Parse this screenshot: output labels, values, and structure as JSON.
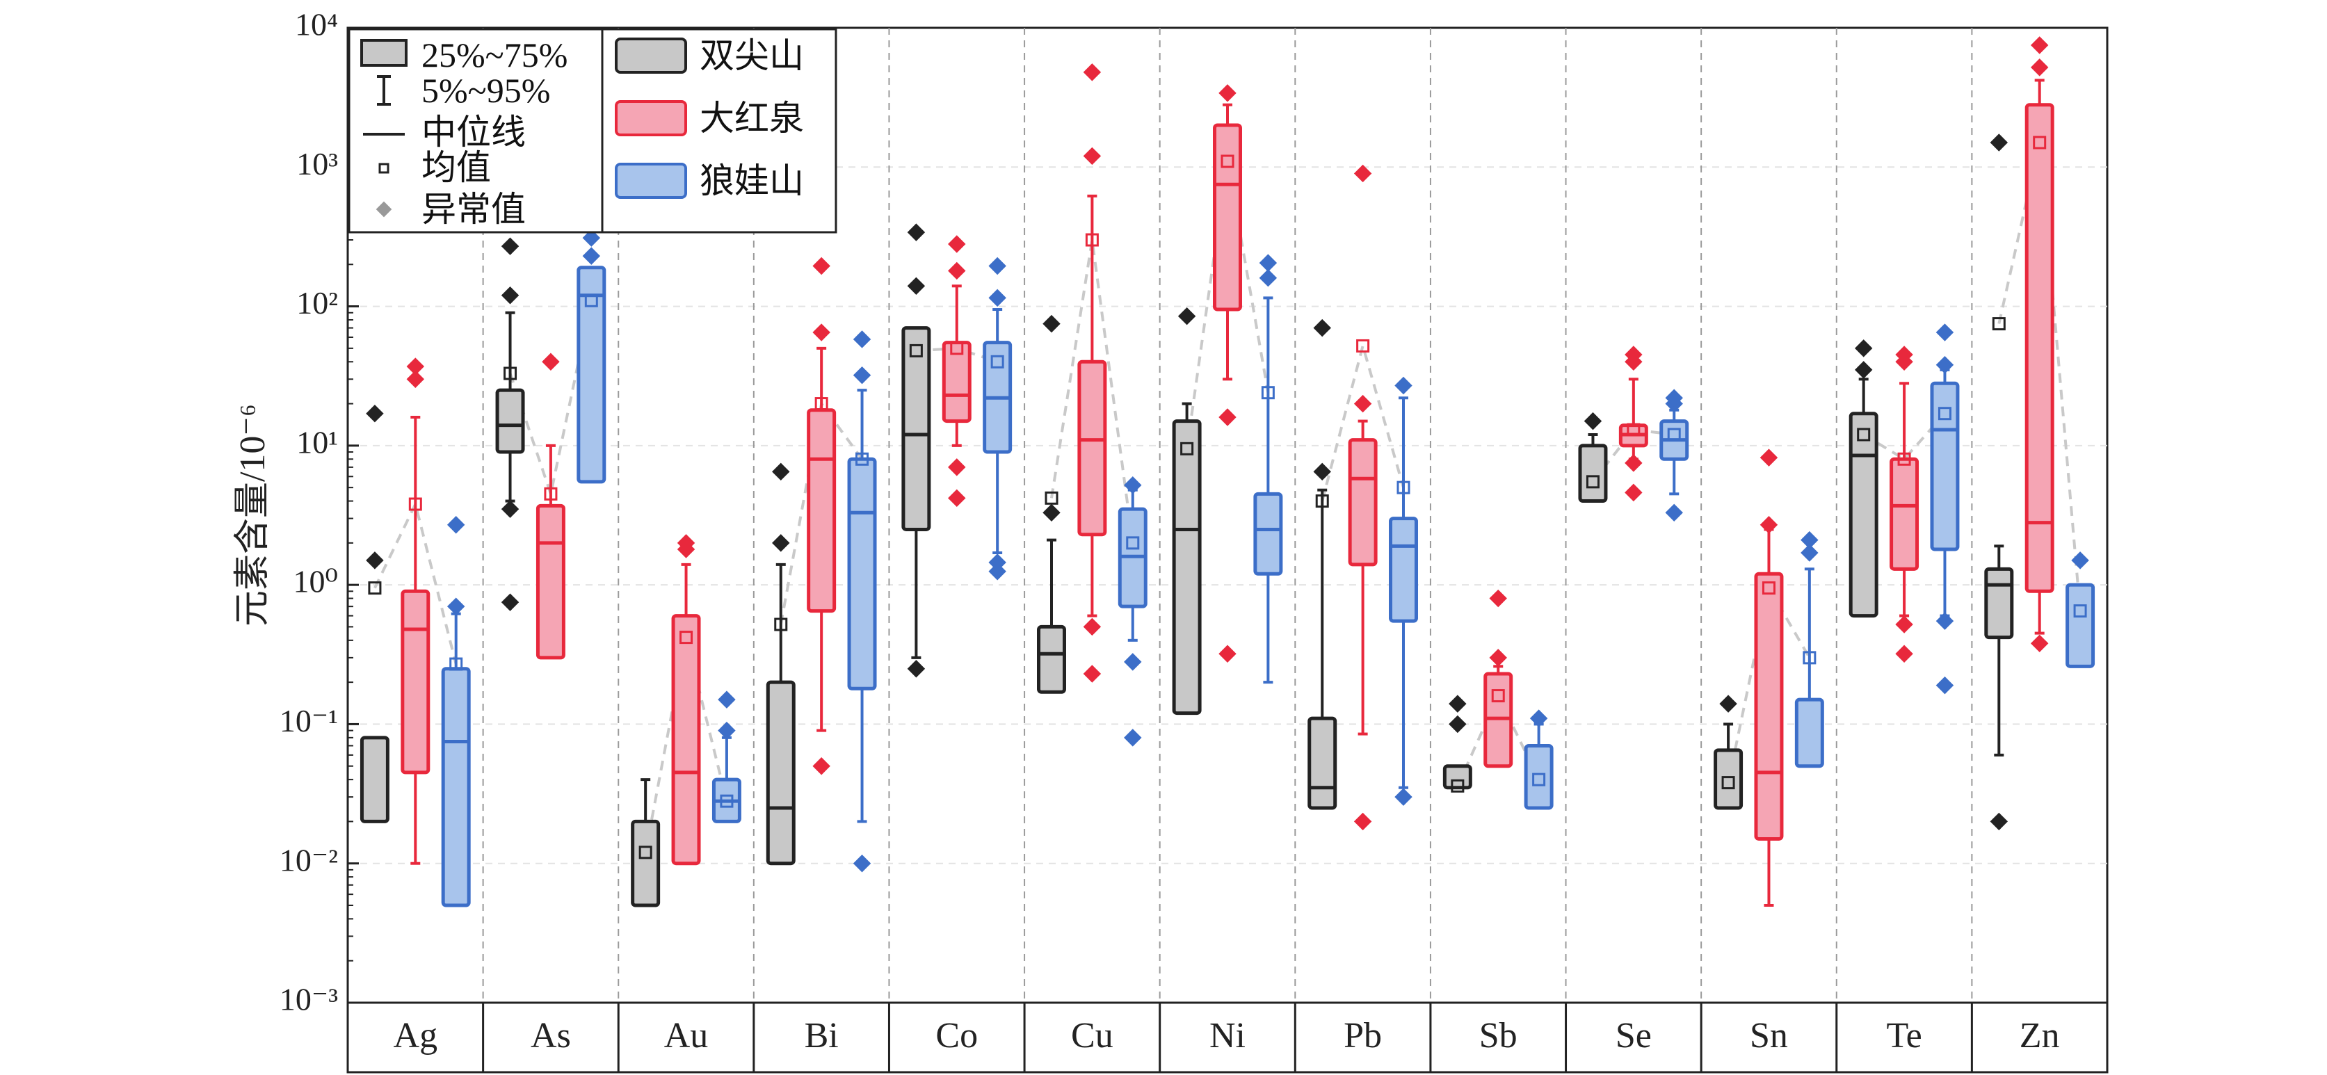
{
  "chart_data": {
    "type": "boxplot",
    "ylabel": "元素含量/10⁻⁶",
    "yscale": "log",
    "ylim": [
      0.001,
      10000
    ],
    "ytick_exponents": [
      -3,
      -2,
      -1,
      0,
      1,
      2,
      3,
      4
    ],
    "ytick_labels": [
      "10⁻³",
      "10⁻²",
      "10⁻¹",
      "10⁰",
      "10¹",
      "10²",
      "10³",
      "10⁴"
    ],
    "categories": [
      "Ag",
      "As",
      "Au",
      "Bi",
      "Co",
      "Cu",
      "Ni",
      "Pb",
      "Sb",
      "Se",
      "Sn",
      "Te",
      "Zn"
    ],
    "legend_left": [
      {
        "marker": "box",
        "label": "25%~75%"
      },
      {
        "marker": "whisker",
        "label": "5%~95%"
      },
      {
        "marker": "line",
        "label": "中位线"
      },
      {
        "marker": "square",
        "label": "均值"
      },
      {
        "marker": "diamond",
        "label": "异常值"
      }
    ],
    "series": [
      {
        "name": "双尖山",
        "color": "#222222",
        "fill": "#c8c8c8",
        "boxes": [
          {
            "q1": 0.02,
            "q3": 0.08,
            "median": null,
            "wlo": null,
            "whi": null,
            "mean": 0.95,
            "outliers": [
              1.5,
              17
            ]
          },
          {
            "q1": 9,
            "q3": 25,
            "median": 14,
            "wlo": 4,
            "whi": 90,
            "mean": 33,
            "outliers": [
              0.75,
              3.5,
              120,
              270
            ]
          },
          {
            "q1": 0.005,
            "q3": 0.02,
            "median": null,
            "wlo": null,
            "whi": 0.04,
            "mean": 0.012,
            "outliers": []
          },
          {
            "q1": 0.01,
            "q3": 0.2,
            "median": 0.025,
            "wlo": null,
            "whi": 1.4,
            "mean": 0.52,
            "outliers": [
              2,
              6.5
            ]
          },
          {
            "q1": 2.5,
            "q3": 70,
            "median": 12,
            "wlo": 0.3,
            "whi": null,
            "mean": 48,
            "outliers": [
              0.25,
              140,
              340
            ]
          },
          {
            "q1": 0.17,
            "q3": 0.5,
            "median": 0.32,
            "wlo": null,
            "whi": 2.1,
            "mean": 4.2,
            "outliers": [
              3.3,
              75
            ]
          },
          {
            "q1": 0.12,
            "q3": 15,
            "median": 2.5,
            "wlo": null,
            "whi": 20,
            "mean": 9.5,
            "outliers": [
              85
            ]
          },
          {
            "q1": 0.025,
            "q3": 0.11,
            "median": 0.035,
            "wlo": null,
            "whi": 4.8,
            "mean": 4,
            "outliers": [
              6.5,
              70
            ]
          },
          {
            "q1": 0.035,
            "q3": 0.05,
            "median": null,
            "wlo": null,
            "whi": null,
            "mean": 0.036,
            "outliers": [
              0.1,
              0.14
            ]
          },
          {
            "q1": 4,
            "q3": 10,
            "median": null,
            "wlo": null,
            "whi": 12,
            "mean": 5.5,
            "outliers": [
              15
            ]
          },
          {
            "q1": 0.025,
            "q3": 0.065,
            "median": null,
            "wlo": null,
            "whi": 0.1,
            "mean": 0.038,
            "outliers": [
              0.14
            ]
          },
          {
            "q1": 0.6,
            "q3": 17,
            "median": 8.5,
            "wlo": null,
            "whi": 30,
            "mean": 12,
            "outliers": [
              35,
              50
            ]
          },
          {
            "q1": 0.42,
            "q3": 1.3,
            "median": 1,
            "wlo": 0.06,
            "whi": 1.9,
            "mean": 75,
            "outliers": [
              0.02,
              1500
            ]
          }
        ]
      },
      {
        "name": "大红泉",
        "color": "#e8283c",
        "fill": "#f5a5b4",
        "boxes": [
          {
            "q1": 0.045,
            "q3": 0.9,
            "median": 0.48,
            "wlo": 0.01,
            "whi": 16,
            "mean": 3.8,
            "outliers": [
              30,
              37
            ]
          },
          {
            "q1": 0.3,
            "q3": 3.7,
            "median": 2,
            "wlo": null,
            "whi": 10,
            "mean": 4.5,
            "outliers": [
              40
            ]
          },
          {
            "q1": 0.01,
            "q3": 0.6,
            "median": 0.045,
            "wlo": null,
            "whi": 1.4,
            "mean": 0.42,
            "outliers": [
              1.8,
              2
            ]
          },
          {
            "q1": 0.65,
            "q3": 18,
            "median": 8,
            "wlo": 0.09,
            "whi": 50,
            "mean": 20,
            "outliers": [
              0.05,
              65,
              195
            ]
          },
          {
            "q1": 15,
            "q3": 55,
            "median": 23,
            "wlo": 10,
            "whi": 140,
            "mean": 50,
            "outliers": [
              4.2,
              7,
              180,
              280
            ]
          },
          {
            "q1": 2.3,
            "q3": 40,
            "median": 11,
            "wlo": 0.6,
            "whi": 620,
            "mean": 300,
            "outliers": [
              0.23,
              0.5,
              1200,
              4800
            ]
          },
          {
            "q1": 95,
            "q3": 2000,
            "median": 750,
            "wlo": 30,
            "whi": 2800,
            "mean": 1100,
            "outliers": [
              0.32,
              16,
              3400
            ]
          },
          {
            "q1": 1.4,
            "q3": 11,
            "median": 5.8,
            "wlo": 0.085,
            "whi": 15,
            "mean": 52,
            "outliers": [
              0.02,
              20,
              900
            ]
          },
          {
            "q1": 0.05,
            "q3": 0.23,
            "median": 0.11,
            "wlo": null,
            "whi": 0.26,
            "mean": 0.16,
            "outliers": [
              0.3,
              0.8
            ]
          },
          {
            "q1": 10,
            "q3": 14,
            "median": 12,
            "wlo": 8,
            "whi": 30,
            "mean": 13,
            "outliers": [
              4.6,
              7.5,
              40,
              45
            ]
          },
          {
            "q1": 0.015,
            "q3": 1.2,
            "median": 0.045,
            "wlo": 0.005,
            "whi": 2.5,
            "mean": 0.95,
            "outliers": [
              2.7,
              8.2
            ]
          },
          {
            "q1": 1.3,
            "q3": 8,
            "median": 3.7,
            "wlo": 0.6,
            "whi": 28,
            "mean": 8,
            "outliers": [
              0.32,
              0.52,
              40,
              45
            ]
          },
          {
            "q1": 0.9,
            "q3": 2800,
            "median": 2.8,
            "wlo": 0.45,
            "whi": 4200,
            "mean": 1500,
            "outliers": [
              0.38,
              5200,
              7500
            ]
          }
        ]
      },
      {
        "name": "狼娃山",
        "color": "#3c6ec8",
        "fill": "#a8c4ec",
        "boxes": [
          {
            "q1": 0.005,
            "q3": 0.25,
            "median": 0.075,
            "wlo": null,
            "whi": 0.62,
            "mean": 0.27,
            "outliers": [
              0.7,
              2.7
            ]
          },
          {
            "q1": 5.5,
            "q3": 190,
            "median": 120,
            "wlo": null,
            "whi": null,
            "mean": 110,
            "outliers": [
              230,
              310
            ]
          },
          {
            "q1": 0.02,
            "q3": 0.04,
            "median": 0.028,
            "wlo": null,
            "whi": 0.08,
            "mean": 0.028,
            "outliers": [
              0.09,
              0.15
            ]
          },
          {
            "q1": 0.18,
            "q3": 8,
            "median": 3.3,
            "wlo": 0.02,
            "whi": 25,
            "mean": 8,
            "outliers": [
              0.01,
              32,
              58
            ]
          },
          {
            "q1": 9,
            "q3": 55,
            "median": 22,
            "wlo": 1.7,
            "whi": 95,
            "mean": 40,
            "outliers": [
              1.25,
              1.45,
              115,
              195
            ]
          },
          {
            "q1": 0.7,
            "q3": 3.5,
            "median": 1.6,
            "wlo": 0.4,
            "whi": 4.8,
            "mean": 2,
            "outliers": [
              0.08,
              0.28,
              5.2
            ]
          },
          {
            "q1": 1.2,
            "q3": 4.5,
            "median": 2.5,
            "wlo": 0.2,
            "whi": 115,
            "mean": 24,
            "outliers": [
              160,
              205
            ]
          },
          {
            "q1": 0.55,
            "q3": 3,
            "median": 1.9,
            "wlo": 0.035,
            "whi": 22,
            "mean": 5,
            "outliers": [
              0.03,
              27
            ]
          },
          {
            "q1": 0.025,
            "q3": 0.07,
            "median": null,
            "wlo": null,
            "whi": 0.1,
            "mean": 0.04,
            "outliers": [
              0.11
            ]
          },
          {
            "q1": 8,
            "q3": 15,
            "median": 11,
            "wlo": 4.5,
            "whi": 18,
            "mean": 12,
            "outliers": [
              3.3,
              20,
              22
            ]
          },
          {
            "q1": 0.05,
            "q3": 0.15,
            "median": null,
            "wlo": null,
            "whi": 1.3,
            "mean": 0.3,
            "outliers": [
              1.7,
              2.1
            ]
          },
          {
            "q1": 1.8,
            "q3": 28,
            "median": 13,
            "wlo": 0.6,
            "whi": 35,
            "mean": 17,
            "outliers": [
              0.19,
              0.55,
              38,
              65
            ]
          },
          {
            "q1": 0.26,
            "q3": 1,
            "median": null,
            "wlo": null,
            "whi": null,
            "mean": 0.65,
            "outliers": [
              1.5
            ]
          }
        ]
      }
    ]
  }
}
